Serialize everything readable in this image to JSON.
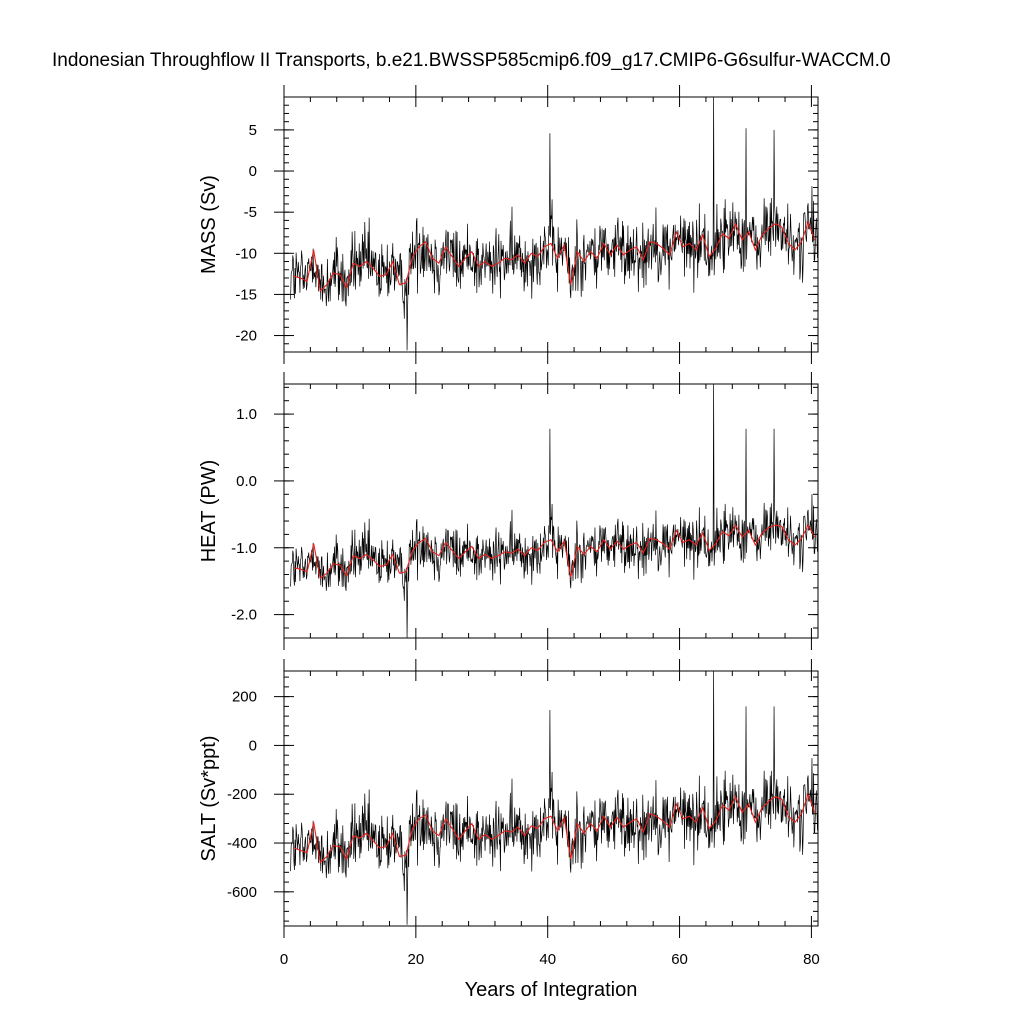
{
  "chart_data": {
    "type": "line",
    "title": "Indonesian Throughflow II Transports, b.e21.BWSSP585cmip6.f09_g17.CMIP6-G6sulfur-WACCM.0",
    "xlabel": "Years of Integration",
    "xlim": [
      0,
      81
    ],
    "x_ticks": [
      0,
      20,
      40,
      60,
      80
    ],
    "x_tick_labels": [
      "0",
      "20",
      "40",
      "60",
      "80"
    ],
    "series_colors": {
      "monthly": "#000000",
      "annual_mean": "#e8201c"
    },
    "panels": [
      {
        "ylabel": "MASS (Sv)",
        "ylim": [
          -22,
          9
        ],
        "y_ticks": [
          5,
          0,
          -5,
          -10,
          -15,
          -20
        ],
        "y_tick_labels": [
          "5",
          "0",
          "-5",
          "-10",
          "-15",
          "-20"
        ],
        "annual_mean": [
          {
            "x": 1.5,
            "y": -12.8
          },
          {
            "x": 2.5,
            "y": -13.0
          },
          {
            "x": 3.5,
            "y": -13.4
          },
          {
            "x": 4.5,
            "y": -9.6
          },
          {
            "x": 5.5,
            "y": -14.6
          },
          {
            "x": 6.5,
            "y": -13.8
          },
          {
            "x": 7.5,
            "y": -12.4
          },
          {
            "x": 8.5,
            "y": -12.6
          },
          {
            "x": 9.5,
            "y": -14.2
          },
          {
            "x": 10.5,
            "y": -11.2
          },
          {
            "x": 11.5,
            "y": -11.6
          },
          {
            "x": 12.5,
            "y": -11.0
          },
          {
            "x": 13.5,
            "y": -11.8
          },
          {
            "x": 14.5,
            "y": -12.8
          },
          {
            "x": 15.5,
            "y": -12.6
          },
          {
            "x": 16.5,
            "y": -11.0
          },
          {
            "x": 17.5,
            "y": -13.8
          },
          {
            "x": 18.5,
            "y": -13.6
          },
          {
            "x": 19.5,
            "y": -10.4
          },
          {
            "x": 20.5,
            "y": -9.2
          },
          {
            "x": 21.5,
            "y": -8.6
          },
          {
            "x": 22.5,
            "y": -10.6
          },
          {
            "x": 23.5,
            "y": -11.2
          },
          {
            "x": 24.5,
            "y": -9.2
          },
          {
            "x": 25.5,
            "y": -10.4
          },
          {
            "x": 26.5,
            "y": -11.6
          },
          {
            "x": 27.5,
            "y": -10.6
          },
          {
            "x": 28.5,
            "y": -9.8
          },
          {
            "x": 29.5,
            "y": -11.6
          },
          {
            "x": 30.5,
            "y": -11.0
          },
          {
            "x": 31.5,
            "y": -11.6
          },
          {
            "x": 32.5,
            "y": -11.2
          },
          {
            "x": 33.5,
            "y": -10.6
          },
          {
            "x": 34.5,
            "y": -10.8
          },
          {
            "x": 35.5,
            "y": -10.2
          },
          {
            "x": 36.5,
            "y": -11.2
          },
          {
            "x": 37.5,
            "y": -10.0
          },
          {
            "x": 38.5,
            "y": -10.4
          },
          {
            "x": 39.5,
            "y": -9.2
          },
          {
            "x": 40.5,
            "y": -8.8
          },
          {
            "x": 41.5,
            "y": -10.6
          },
          {
            "x": 42.5,
            "y": -9.0
          },
          {
            "x": 43.5,
            "y": -13.8
          },
          {
            "x": 44.5,
            "y": -9.8
          },
          {
            "x": 45.5,
            "y": -11.0
          },
          {
            "x": 46.5,
            "y": -9.8
          },
          {
            "x": 47.5,
            "y": -10.6
          },
          {
            "x": 48.5,
            "y": -8.8
          },
          {
            "x": 49.5,
            "y": -10.2
          },
          {
            "x": 50.5,
            "y": -9.0
          },
          {
            "x": 51.5,
            "y": -10.2
          },
          {
            "x": 52.5,
            "y": -9.6
          },
          {
            "x": 53.5,
            "y": -9.2
          },
          {
            "x": 54.5,
            "y": -10.8
          },
          {
            "x": 55.5,
            "y": -8.6
          },
          {
            "x": 56.5,
            "y": -8.8
          },
          {
            "x": 57.5,
            "y": -9.4
          },
          {
            "x": 58.5,
            "y": -10.2
          },
          {
            "x": 59.5,
            "y": -7.4
          },
          {
            "x": 60.5,
            "y": -9.2
          },
          {
            "x": 61.5,
            "y": -8.8
          },
          {
            "x": 62.5,
            "y": -9.6
          },
          {
            "x": 63.5,
            "y": -7.8
          },
          {
            "x": 64.5,
            "y": -10.4
          },
          {
            "x": 65.5,
            "y": -9.4
          },
          {
            "x": 66.5,
            "y": -7.6
          },
          {
            "x": 67.5,
            "y": -8.2
          },
          {
            "x": 68.5,
            "y": -6.4
          },
          {
            "x": 69.5,
            "y": -8.4
          },
          {
            "x": 70.5,
            "y": -7.4
          },
          {
            "x": 71.5,
            "y": -9.6
          },
          {
            "x": 72.5,
            "y": -7.8
          },
          {
            "x": 73.5,
            "y": -7.0
          },
          {
            "x": 74.5,
            "y": -6.4
          },
          {
            "x": 75.5,
            "y": -6.8
          },
          {
            "x": 76.5,
            "y": -8.8
          },
          {
            "x": 77.5,
            "y": -9.6
          },
          {
            "x": 78.5,
            "y": -8.6
          },
          {
            "x": 79.5,
            "y": -6.2
          },
          {
            "x": 80.5,
            "y": -8.4
          }
        ]
      },
      {
        "ylabel": "HEAT (PW)",
        "ylim": [
          -2.35,
          1.45
        ],
        "y_ticks": [
          1.0,
          0.0,
          -1.0,
          -2.0
        ],
        "y_tick_labels": [
          "1.0",
          "0.0",
          "-1.0",
          "-2.0"
        ],
        "annual_mean": [
          {
            "x": 1.5,
            "y": -1.3
          },
          {
            "x": 2.5,
            "y": -1.32
          },
          {
            "x": 3.5,
            "y": -1.36
          },
          {
            "x": 4.5,
            "y": -0.94
          },
          {
            "x": 5.5,
            "y": -1.46
          },
          {
            "x": 6.5,
            "y": -1.38
          },
          {
            "x": 7.5,
            "y": -1.24
          },
          {
            "x": 8.5,
            "y": -1.26
          },
          {
            "x": 9.5,
            "y": -1.42
          },
          {
            "x": 10.5,
            "y": -1.12
          },
          {
            "x": 11.5,
            "y": -1.16
          },
          {
            "x": 12.5,
            "y": -1.1
          },
          {
            "x": 13.5,
            "y": -1.18
          },
          {
            "x": 14.5,
            "y": -1.28
          },
          {
            "x": 15.5,
            "y": -1.26
          },
          {
            "x": 16.5,
            "y": -1.1
          },
          {
            "x": 17.5,
            "y": -1.38
          },
          {
            "x": 18.5,
            "y": -1.36
          },
          {
            "x": 19.5,
            "y": -1.04
          },
          {
            "x": 20.5,
            "y": -0.92
          },
          {
            "x": 21.5,
            "y": -0.86
          },
          {
            "x": 22.5,
            "y": -1.06
          },
          {
            "x": 23.5,
            "y": -1.12
          },
          {
            "x": 24.5,
            "y": -0.92
          },
          {
            "x": 25.5,
            "y": -1.04
          },
          {
            "x": 26.5,
            "y": -1.16
          },
          {
            "x": 27.5,
            "y": -1.06
          },
          {
            "x": 28.5,
            "y": -0.98
          },
          {
            "x": 29.5,
            "y": -1.16
          },
          {
            "x": 30.5,
            "y": -1.1
          },
          {
            "x": 31.5,
            "y": -1.16
          },
          {
            "x": 32.5,
            "y": -1.12
          },
          {
            "x": 33.5,
            "y": -1.06
          },
          {
            "x": 34.5,
            "y": -1.08
          },
          {
            "x": 35.5,
            "y": -1.02
          },
          {
            "x": 36.5,
            "y": -1.12
          },
          {
            "x": 37.5,
            "y": -1.0
          },
          {
            "x": 38.5,
            "y": -1.04
          },
          {
            "x": 39.5,
            "y": -0.92
          },
          {
            "x": 40.5,
            "y": -0.88
          },
          {
            "x": 41.5,
            "y": -1.06
          },
          {
            "x": 42.5,
            "y": -0.9
          },
          {
            "x": 43.5,
            "y": -1.44
          },
          {
            "x": 44.5,
            "y": -0.98
          },
          {
            "x": 45.5,
            "y": -1.1
          },
          {
            "x": 46.5,
            "y": -0.98
          },
          {
            "x": 47.5,
            "y": -1.06
          },
          {
            "x": 48.5,
            "y": -0.88
          },
          {
            "x": 49.5,
            "y": -1.02
          },
          {
            "x": 50.5,
            "y": -0.9
          },
          {
            "x": 51.5,
            "y": -1.02
          },
          {
            "x": 52.5,
            "y": -0.96
          },
          {
            "x": 53.5,
            "y": -0.92
          },
          {
            "x": 54.5,
            "y": -1.08
          },
          {
            "x": 55.5,
            "y": -0.86
          },
          {
            "x": 56.5,
            "y": -0.88
          },
          {
            "x": 57.5,
            "y": -0.94
          },
          {
            "x": 58.5,
            "y": -1.02
          },
          {
            "x": 59.5,
            "y": -0.74
          },
          {
            "x": 60.5,
            "y": -0.92
          },
          {
            "x": 61.5,
            "y": -0.88
          },
          {
            "x": 62.5,
            "y": -0.96
          },
          {
            "x": 63.5,
            "y": -0.78
          },
          {
            "x": 64.5,
            "y": -1.04
          },
          {
            "x": 65.5,
            "y": -0.94
          },
          {
            "x": 66.5,
            "y": -0.76
          },
          {
            "x": 67.5,
            "y": -0.82
          },
          {
            "x": 68.5,
            "y": -0.66
          },
          {
            "x": 69.5,
            "y": -0.84
          },
          {
            "x": 70.5,
            "y": -0.74
          },
          {
            "x": 71.5,
            "y": -0.96
          },
          {
            "x": 72.5,
            "y": -0.78
          },
          {
            "x": 73.5,
            "y": -0.7
          },
          {
            "x": 74.5,
            "y": -0.66
          },
          {
            "x": 75.5,
            "y": -0.68
          },
          {
            "x": 76.5,
            "y": -0.88
          },
          {
            "x": 77.5,
            "y": -0.96
          },
          {
            "x": 78.5,
            "y": -0.86
          },
          {
            "x": 79.5,
            "y": -0.66
          },
          {
            "x": 80.5,
            "y": -0.84
          }
        ]
      },
      {
        "ylabel": "SALT (Sv*ppt)",
        "ylim": [
          -740,
          305
        ],
        "y_ticks": [
          200,
          0,
          -200,
          -400,
          -600
        ],
        "y_tick_labels": [
          "200",
          "0",
          "-200",
          "-400",
          "-600"
        ],
        "annual_mean": [
          {
            "x": 1.5,
            "y": -420
          },
          {
            "x": 2.5,
            "y": -430
          },
          {
            "x": 3.5,
            "y": -440
          },
          {
            "x": 4.5,
            "y": -315
          },
          {
            "x": 5.5,
            "y": -480
          },
          {
            "x": 6.5,
            "y": -455
          },
          {
            "x": 7.5,
            "y": -410
          },
          {
            "x": 8.5,
            "y": -415
          },
          {
            "x": 9.5,
            "y": -465
          },
          {
            "x": 10.5,
            "y": -370
          },
          {
            "x": 11.5,
            "y": -380
          },
          {
            "x": 12.5,
            "y": -360
          },
          {
            "x": 13.5,
            "y": -390
          },
          {
            "x": 14.5,
            "y": -420
          },
          {
            "x": 15.5,
            "y": -415
          },
          {
            "x": 16.5,
            "y": -360
          },
          {
            "x": 17.5,
            "y": -455
          },
          {
            "x": 18.5,
            "y": -450
          },
          {
            "x": 19.5,
            "y": -340
          },
          {
            "x": 20.5,
            "y": -300
          },
          {
            "x": 21.5,
            "y": -285
          },
          {
            "x": 22.5,
            "y": -350
          },
          {
            "x": 23.5,
            "y": -370
          },
          {
            "x": 24.5,
            "y": -300
          },
          {
            "x": 25.5,
            "y": -340
          },
          {
            "x": 26.5,
            "y": -385
          },
          {
            "x": 27.5,
            "y": -350
          },
          {
            "x": 28.5,
            "y": -320
          },
          {
            "x": 29.5,
            "y": -385
          },
          {
            "x": 30.5,
            "y": -365
          },
          {
            "x": 31.5,
            "y": -385
          },
          {
            "x": 32.5,
            "y": -370
          },
          {
            "x": 33.5,
            "y": -350
          },
          {
            "x": 34.5,
            "y": -355
          },
          {
            "x": 35.5,
            "y": -335
          },
          {
            "x": 36.5,
            "y": -370
          },
          {
            "x": 37.5,
            "y": -330
          },
          {
            "x": 38.5,
            "y": -340
          },
          {
            "x": 39.5,
            "y": -300
          },
          {
            "x": 40.5,
            "y": -290
          },
          {
            "x": 41.5,
            "y": -350
          },
          {
            "x": 42.5,
            "y": -295
          },
          {
            "x": 43.5,
            "y": -465
          },
          {
            "x": 44.5,
            "y": -320
          },
          {
            "x": 45.5,
            "y": -360
          },
          {
            "x": 46.5,
            "y": -320
          },
          {
            "x": 47.5,
            "y": -350
          },
          {
            "x": 48.5,
            "y": -290
          },
          {
            "x": 49.5,
            "y": -335
          },
          {
            "x": 50.5,
            "y": -295
          },
          {
            "x": 51.5,
            "y": -335
          },
          {
            "x": 52.5,
            "y": -315
          },
          {
            "x": 53.5,
            "y": -300
          },
          {
            "x": 54.5,
            "y": -355
          },
          {
            "x": 55.5,
            "y": -280
          },
          {
            "x": 56.5,
            "y": -290
          },
          {
            "x": 57.5,
            "y": -310
          },
          {
            "x": 58.5,
            "y": -335
          },
          {
            "x": 59.5,
            "y": -240
          },
          {
            "x": 60.5,
            "y": -300
          },
          {
            "x": 61.5,
            "y": -290
          },
          {
            "x": 62.5,
            "y": -315
          },
          {
            "x": 63.5,
            "y": -255
          },
          {
            "x": 64.5,
            "y": -340
          },
          {
            "x": 65.5,
            "y": -310
          },
          {
            "x": 66.5,
            "y": -245
          },
          {
            "x": 67.5,
            "y": -265
          },
          {
            "x": 68.5,
            "y": -210
          },
          {
            "x": 69.5,
            "y": -275
          },
          {
            "x": 70.5,
            "y": -240
          },
          {
            "x": 71.5,
            "y": -315
          },
          {
            "x": 72.5,
            "y": -255
          },
          {
            "x": 73.5,
            "y": -230
          },
          {
            "x": 74.5,
            "y": -210
          },
          {
            "x": 75.5,
            "y": -220
          },
          {
            "x": 76.5,
            "y": -290
          },
          {
            "x": 77.5,
            "y": -315
          },
          {
            "x": 78.5,
            "y": -280
          },
          {
            "x": 79.5,
            "y": -200
          },
          {
            "x": 80.5,
            "y": -275
          }
        ]
      }
    ],
    "monthly_note_spikes": [
      {
        "x": 40.3,
        "mass": 4.6,
        "heat": 0.78,
        "salt": 145
      },
      {
        "x": 65.2,
        "mass": 9.2,
        "heat": 1.45,
        "salt": 305
      },
      {
        "x": 70.1,
        "mass": 5.2,
        "heat": 0.78,
        "salt": 160
      },
      {
        "x": 74.3,
        "mass": 5.0,
        "heat": 0.78,
        "salt": 160
      },
      {
        "x": 18.7,
        "mass": -21.8,
        "heat": -2.35,
        "salt": -735
      }
    ]
  }
}
